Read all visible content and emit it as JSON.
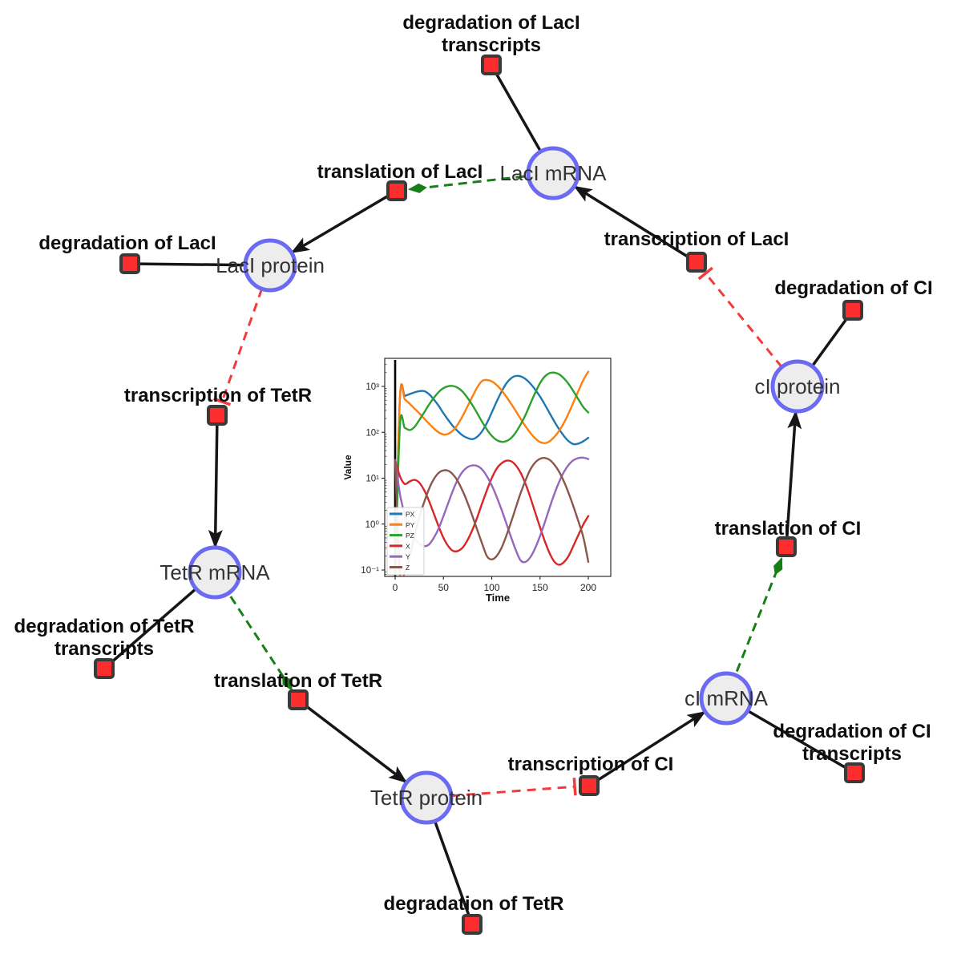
{
  "diagram": {
    "species": [
      {
        "label": "LacI mRNA"
      },
      {
        "label": "LacI protein"
      },
      {
        "label": "TetR mRNA"
      },
      {
        "label": "TetR protein"
      },
      {
        "label": "cI mRNA"
      },
      {
        "label": "cI protein"
      }
    ],
    "reactions": [
      {
        "l1": "degradation of LacI",
        "l2": "transcripts"
      },
      {
        "l1": "translation of LacI"
      },
      {
        "l1": "degradation of LacI"
      },
      {
        "l1": "transcription of LacI"
      },
      {
        "l1": "degradation of CI"
      },
      {
        "l1": "transcription of TetR"
      },
      {
        "l1": "degradation of TetR",
        "l2": "transcripts"
      },
      {
        "l1": "translation of TetR"
      },
      {
        "l1": "degradation of TetR"
      },
      {
        "l1": "transcription of CI"
      },
      {
        "l1": "degradation of CI",
        "l2": "transcripts"
      },
      {
        "l1": "translation of CI"
      }
    ],
    "colors": {
      "species_border": "#6b6bf2",
      "species_fill": "#ededed",
      "reaction_fill": "#fb2d2d",
      "reaction_border": "#3a3a3a",
      "flow_edge": "#161616",
      "activation_edge": "#168016",
      "inhibition_edge": "#f43b3b"
    }
  },
  "chart_data": {
    "type": "line",
    "title": "",
    "xlabel": "Time",
    "ylabel": "Value",
    "y_scale": "log",
    "grid": false,
    "legend_position": "lower left",
    "xlim": [
      -10,
      211
    ],
    "ylim": [
      0.07,
      3900
    ],
    "x_ticks": [
      0,
      50,
      100,
      150,
      200
    ],
    "y_tick_values": [
      1000,
      100,
      10,
      1,
      0.1
    ],
    "y_tick_labels": [
      "10³",
      "10²",
      "10¹",
      "10⁰",
      "10⁻¹"
    ],
    "vline_x": 0,
    "x": [
      0,
      5,
      10,
      15,
      20,
      25,
      30,
      35,
      40,
      45,
      50,
      55,
      60,
      65,
      70,
      75,
      80,
      85,
      90,
      95,
      100,
      105,
      110,
      115,
      120,
      125,
      130,
      135,
      140,
      145,
      150,
      155,
      160,
      165,
      170,
      175,
      180,
      185,
      190,
      195,
      200
    ],
    "series": [
      {
        "name": "PX",
        "color": "#1f77b4",
        "values": [
          0.08,
          560,
          620,
          680,
          740,
          790,
          790,
          680,
          520,
          380,
          260,
          185,
          135,
          105,
          85,
          75,
          71,
          80,
          105,
          160,
          270,
          460,
          760,
          1150,
          1500,
          1690,
          1650,
          1450,
          1150,
          850,
          600,
          400,
          260,
          170,
          115,
          82,
          63,
          55,
          57,
          64,
          76
        ]
      },
      {
        "name": "PY",
        "color": "#ff7f0e",
        "values": [
          0.08,
          600,
          520,
          420,
          330,
          260,
          200,
          155,
          122,
          100,
          90,
          93,
          110,
          150,
          230,
          370,
          600,
          950,
          1310,
          1380,
          1290,
          1080,
          830,
          600,
          420,
          290,
          195,
          135,
          97,
          74,
          61,
          58,
          64,
          80,
          110,
          165,
          270,
          470,
          820,
          1400,
          2100
        ]
      },
      {
        "name": "PZ",
        "color": "#2ca02c",
        "values": [
          0.08,
          140,
          125,
          112,
          130,
          185,
          270,
          400,
          560,
          750,
          920,
          1010,
          1020,
          930,
          760,
          560,
          390,
          260,
          170,
          115,
          84,
          68,
          62,
          64,
          75,
          100,
          150,
          240,
          420,
          720,
          1180,
          1650,
          1950,
          2000,
          1820,
          1480,
          1100,
          760,
          510,
          350,
          270
        ]
      },
      {
        "name": "X",
        "color": "#d62728",
        "values": [
          25,
          11,
          7.5,
          8.5,
          9.2,
          8,
          5.5,
          3.2,
          1.7,
          0.9,
          0.5,
          0.33,
          0.26,
          0.26,
          0.31,
          0.45,
          0.75,
          1.4,
          2.8,
          5.5,
          10,
          16,
          21,
          24,
          23.5,
          19,
          13,
          7.5,
          3.8,
          1.8,
          0.85,
          0.42,
          0.23,
          0.15,
          0.13,
          0.15,
          0.21,
          0.35,
          0.6,
          1.0,
          1.5
        ]
      },
      {
        "name": "Y",
        "color": "#9467bd",
        "values": [
          25,
          4.5,
          1.6,
          0.8,
          0.5,
          0.38,
          0.33,
          0.36,
          0.5,
          0.8,
          1.5,
          2.9,
          5.5,
          9.5,
          14,
          17.5,
          19,
          18.5,
          15.5,
          11,
          7,
          4,
          2.1,
          1.05,
          0.52,
          0.27,
          0.16,
          0.15,
          0.19,
          0.3,
          0.55,
          1.1,
          2.3,
          4.6,
          8.5,
          14,
          20,
          25,
          27.5,
          28,
          26
        ]
      },
      {
        "name": "Z",
        "color": "#8c564b",
        "values": [
          25,
          0.08,
          0.09,
          0.2,
          0.55,
          1.4,
          3,
          5.8,
          9.5,
          13,
          14.8,
          14.5,
          12,
          8.5,
          5.2,
          2.9,
          1.5,
          0.75,
          0.38,
          0.2,
          0.17,
          0.2,
          0.3,
          0.55,
          1.1,
          2.3,
          4.8,
          9,
          15.5,
          22,
          26.5,
          27.5,
          25,
          19.5,
          13.5,
          8.2,
          4.5,
          2.3,
          1.1,
          0.5,
          0.15
        ]
      }
    ]
  }
}
